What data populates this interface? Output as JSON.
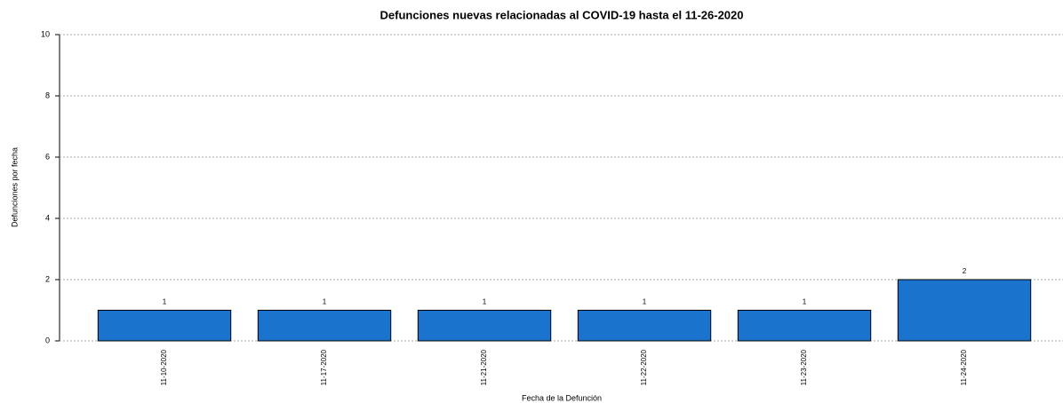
{
  "chart_data": {
    "type": "bar",
    "title": "Defunciones nuevas relacionadas al COVID-19 hasta el 11-26-2020",
    "x_label": "Fecha de la Defunción",
    "y_label": "Defunciones por fecha",
    "categories": [
      "11-10-2020",
      "11-17-2020",
      "11-21-2020",
      "11-22-2020",
      "11-23-2020",
      "11-24-2020"
    ],
    "values": [
      1,
      1,
      1,
      1,
      1,
      2
    ],
    "color": "#1a73cc",
    "ylim": [
      0,
      10
    ],
    "yticks": [
      0,
      2,
      4,
      6,
      8,
      10
    ],
    "grid": true
  }
}
